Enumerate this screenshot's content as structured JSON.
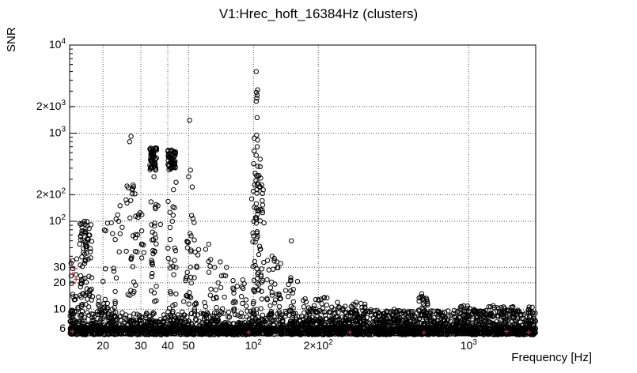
{
  "chart_data": {
    "type": "scatter",
    "title": "V1:Hrec_hoft_16384Hz (clusters)",
    "xlabel": "Frequency [Hz]",
    "ylabel": "SNR",
    "xscale": "log",
    "yscale": "log",
    "xlim": [
      14,
      2048
    ],
    "ylim": [
      5,
      10000
    ],
    "grid": true,
    "legend": "none",
    "colors": {
      "background": "#ffffff",
      "frame": "#000000",
      "grid": "#555555",
      "marker": "#000000",
      "flagged": "#aa3333",
      "text": "#000000"
    },
    "x_ticks": [
      {
        "v": 20,
        "t": "20"
      },
      {
        "v": 30,
        "t": "30"
      },
      {
        "v": 40,
        "t": "40"
      },
      {
        "v": 50,
        "t": "50"
      },
      {
        "v": 100,
        "t": "10",
        "e": "2"
      },
      {
        "v": 200,
        "t": "2×10",
        "e": "2"
      },
      {
        "v": 1000,
        "t": "10",
        "e": "3"
      }
    ],
    "y_ticks": [
      {
        "v": 6,
        "t": "6"
      },
      {
        "v": 10,
        "t": "10"
      },
      {
        "v": 20,
        "t": "20"
      },
      {
        "v": 30,
        "t": "30"
      },
      {
        "v": 100,
        "t": "10",
        "e": "2"
      },
      {
        "v": 200,
        "t": "2×10",
        "e": "2"
      },
      {
        "v": 1000,
        "t": "10",
        "e": "3"
      },
      {
        "v": 2000,
        "t": "2×10",
        "e": "3"
      },
      {
        "v": 10000,
        "t": "10",
        "e": "4"
      }
    ],
    "scatter": {
      "seed": 12345,
      "marker": "open-circle",
      "marker_radius": 2.7,
      "flagged_marker": "plus",
      "bands": [
        [
          14,
          2048,
          5.15,
          6.3,
          2100
        ],
        [
          14,
          2048,
          6.3,
          7.6,
          650
        ],
        [
          14,
          300,
          7.6,
          9.5,
          170
        ],
        [
          300,
          2048,
          7.6,
          9.8,
          200
        ],
        [
          15.5,
          18,
          8,
          100,
          55
        ],
        [
          15.8,
          17.5,
          45,
          95,
          16
        ],
        [
          14,
          16,
          8,
          40,
          25
        ],
        [
          19,
          23,
          8,
          14,
          30
        ],
        [
          20,
          31,
          14,
          130,
          40
        ],
        [
          25,
          28.5,
          150,
          270,
          8
        ],
        [
          33,
          35.5,
          380,
          680,
          60
        ],
        [
          33,
          35.5,
          8,
          300,
          30
        ],
        [
          40,
          43.5,
          380,
          650,
          55
        ],
        [
          40,
          44,
          8,
          280,
          26
        ],
        [
          47,
          56,
          8,
          120,
          40
        ],
        [
          58,
          75,
          8,
          40,
          26
        ],
        [
          80,
          95,
          8,
          22,
          22
        ],
        [
          98,
          112,
          8,
          300,
          70
        ],
        [
          100,
          108,
          300,
          900,
          10
        ],
        [
          115,
          135,
          8,
          40,
          26
        ],
        [
          140,
          162,
          8,
          24,
          16
        ],
        [
          170,
          220,
          7,
          14,
          34
        ],
        [
          230,
          330,
          7,
          12,
          40
        ],
        [
          350,
          560,
          7,
          10,
          34
        ],
        [
          580,
          645,
          8,
          14,
          22
        ],
        [
          900,
          2048,
          8,
          11,
          55
        ]
      ],
      "points": [
        [
          16.4,
          100
        ],
        [
          16.9,
          88
        ],
        [
          16.5,
          74
        ],
        [
          17.1,
          62
        ],
        [
          16.7,
          52
        ],
        [
          16.2,
          44
        ],
        [
          20.6,
          78
        ],
        [
          21,
          95
        ],
        [
          22.8,
          62
        ],
        [
          23.4,
          118
        ],
        [
          23.8,
          45
        ],
        [
          24,
          150
        ],
        [
          27,
          920
        ],
        [
          26.6,
          800
        ],
        [
          26.2,
          240
        ],
        [
          27.4,
          205
        ],
        [
          25.6,
          175
        ],
        [
          29,
          70
        ],
        [
          30.2,
          55
        ],
        [
          31,
          44
        ],
        [
          36,
          150
        ],
        [
          37,
          92
        ],
        [
          34.5,
          320
        ],
        [
          42,
          100
        ],
        [
          41,
          62
        ],
        [
          43,
          36
        ],
        [
          50.5,
          1400
        ],
        [
          51,
          380
        ],
        [
          50,
          320
        ],
        [
          52,
          245
        ],
        [
          57,
          9
        ],
        [
          60,
          48
        ],
        [
          62,
          55
        ],
        [
          66,
          30
        ],
        [
          75,
          30
        ],
        [
          88,
          14
        ],
        [
          103,
          5000
        ],
        [
          104.5,
          3100
        ],
        [
          103.2,
          2900
        ],
        [
          104,
          2700
        ],
        [
          103.6,
          2500
        ],
        [
          103.1,
          2300
        ],
        [
          104,
          1500
        ],
        [
          103.5,
          950
        ],
        [
          104.2,
          700
        ],
        [
          103,
          560
        ],
        [
          104.8,
          420
        ],
        [
          103.3,
          330
        ],
        [
          104,
          262
        ],
        [
          103.7,
          208
        ],
        [
          103.2,
          158
        ],
        [
          104.5,
          120
        ],
        [
          103,
          95
        ],
        [
          104,
          76
        ],
        [
          122,
          40
        ],
        [
          118,
          28
        ],
        [
          150,
          60
        ],
        [
          149,
          21
        ],
        [
          145,
          14
        ],
        [
          250,
          10.5
        ],
        [
          300,
          12
        ],
        [
          450,
          10
        ],
        [
          605,
          15
        ],
        [
          610,
          13
        ],
        [
          1300,
          11
        ],
        [
          1600,
          10.5
        ],
        [
          1900,
          10
        ]
      ],
      "red_points": [
        [
          14.3,
          34
        ],
        [
          14.8,
          29
        ],
        [
          14.5,
          25
        ],
        [
          15,
          22
        ],
        [
          14.6,
          20
        ],
        [
          14.4,
          5.6
        ],
        [
          95,
          5.5
        ],
        [
          280,
          5.5
        ],
        [
          620,
          5.45
        ],
        [
          1500,
          5.6
        ],
        [
          1900,
          5.5
        ]
      ]
    }
  }
}
